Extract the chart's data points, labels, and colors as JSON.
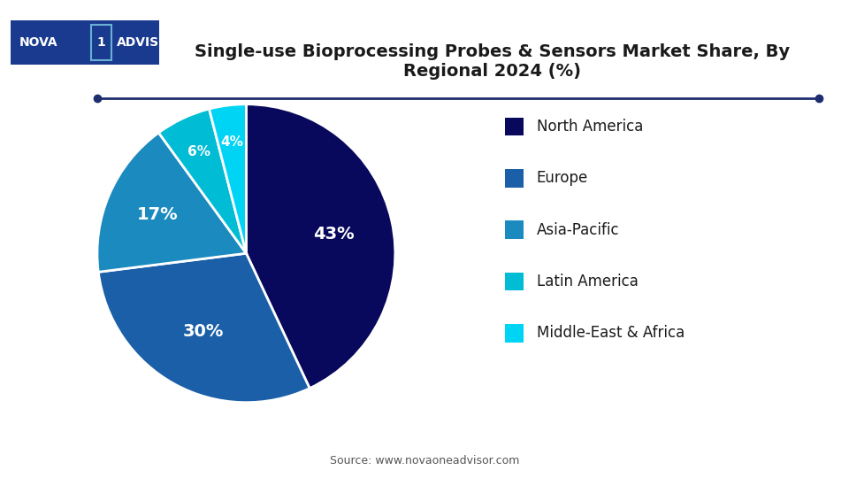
{
  "title": "Single-use Bioprocessing Probes & Sensors Market Share, By\nRegional 2024 (%)",
  "slices": [
    43,
    30,
    17,
    6,
    4
  ],
  "labels": [
    "North America",
    "Europe",
    "Asia-Pacific",
    "Latin America",
    "Middle-East & Africa"
  ],
  "pct_labels": [
    "43%",
    "30%",
    "17%",
    "6%",
    "4%"
  ],
  "colors": [
    "#08085c",
    "#1a5fa8",
    "#1a8abf",
    "#00bcd4",
    "#00d4f5"
  ],
  "background_color": "#ffffff",
  "source_text": "Source: www.novaoneadvisor.com",
  "separator_color": "#1e2d6e",
  "title_color": "#1a1a1a",
  "logo_bg": "#1a3a8f",
  "logo_box_color": "#6ab0d4"
}
